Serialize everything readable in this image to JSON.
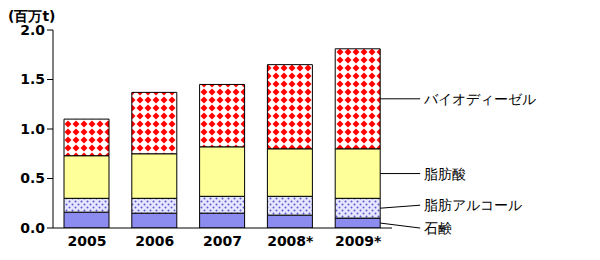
{
  "chart_data": {
    "type": "bar",
    "stacked": true,
    "y_label": "(百万t)",
    "categories": [
      "2005",
      "2006",
      "2007",
      "2008*",
      "2009*"
    ],
    "ylim": [
      0,
      2.0
    ],
    "yticks": [
      {
        "value": 0,
        "label": "0.0"
      },
      0.5,
      {
        "value": 1,
        "label": "1.0"
      },
      1.5,
      {
        "value": 2,
        "label": "2.0"
      }
    ],
    "grid": false,
    "series": [
      {
        "name": "石鹸",
        "color": "#8c8cf0",
        "values": [
          0.16,
          0.15,
          0.15,
          0.13,
          0.1
        ]
      },
      {
        "name": "脂肪アルコール",
        "color": "#5a5ad0",
        "values": [
          0.14,
          0.15,
          0.17,
          0.19,
          0.2
        ]
      },
      {
        "name": "脂肪酸",
        "color": "#ffff99",
        "values": [
          0.43,
          0.45,
          0.5,
          0.48,
          0.5
        ]
      },
      {
        "name": "バイオディーゼル",
        "color": "#ff0000",
        "values": [
          0.37,
          0.62,
          0.63,
          0.85,
          1.01
        ]
      }
    ]
  }
}
